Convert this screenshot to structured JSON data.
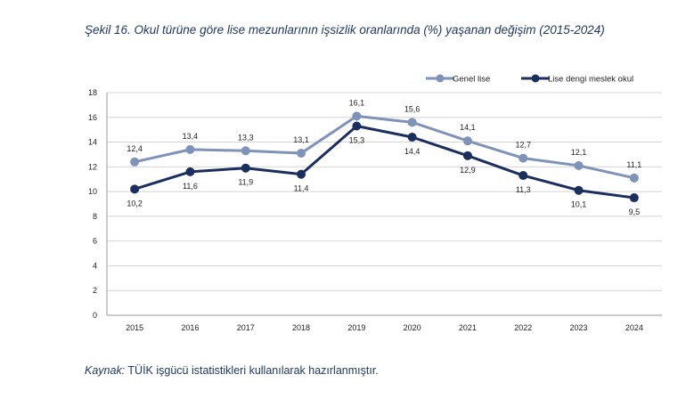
{
  "caption": "Şekil 16. Okul türüne göre lise mezunlarının işsizlik oranlarında (%) yaşanan değişim (2015-2024)",
  "source": {
    "lead": "Kaynak:",
    "text": " TÜİK işgücü istatistikleri kullanılarak hazırlanmıştır."
  },
  "chart_data": {
    "type": "line",
    "title": "",
    "xlabel": "",
    "ylabel": "",
    "x": [
      "2015",
      "2016",
      "2017",
      "2018",
      "2019",
      "2020",
      "2021",
      "2022",
      "2023",
      "2024"
    ],
    "ylim": [
      0,
      18
    ],
    "yticks": [
      0,
      2,
      4,
      6,
      8,
      10,
      12,
      14,
      16,
      18
    ],
    "grid": true,
    "legend_position": "top-right",
    "series": [
      {
        "name": "Genel lise",
        "color": "#7f93b8",
        "values": [
          12.4,
          13.4,
          13.3,
          13.1,
          16.1,
          15.6,
          14.1,
          12.7,
          12.1,
          11.1
        ],
        "labels": [
          "12,4",
          "13,4",
          "13,3",
          "13,1",
          "16,1",
          "15,6",
          "14,1",
          "12,7",
          "12,1",
          "11,1"
        ],
        "label_position": "above"
      },
      {
        "name": "Lise dengi meslek okul",
        "color": "#1b2f5e",
        "values": [
          10.2,
          11.6,
          11.9,
          11.4,
          15.3,
          14.4,
          12.9,
          11.3,
          10.1,
          9.5
        ],
        "labels": [
          "10,2",
          "11,6",
          "11,9",
          "11,4",
          "15,3",
          "14,4",
          "12,9",
          "11,3",
          "10,1",
          "9,5"
        ],
        "label_position": "below"
      }
    ]
  }
}
